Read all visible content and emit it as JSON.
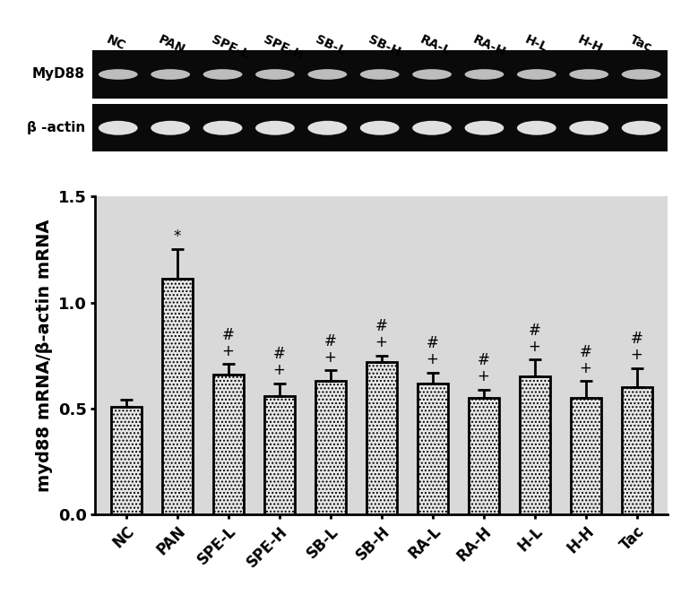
{
  "chart_data": {
    "type": "bar",
    "gel": {
      "lanes": [
        "NC",
        "PAN",
        "SPE-L",
        "SPE-H",
        "SB-L",
        "SB-H",
        "RA-L",
        "RA-H",
        "H-L",
        "H-H",
        "Tac"
      ],
      "rows": [
        "MyD88",
        "β -actin"
      ]
    },
    "y_label": "myd88 mRNA/β-actin mRNA",
    "categories": [
      "NC",
      "PAN",
      "SPE-L",
      "SPE-H",
      "SB-L",
      "SB-H",
      "RA-L",
      "RA-H",
      "H-L",
      "H-H",
      "Tac"
    ],
    "values": [
      0.51,
      1.11,
      0.66,
      0.56,
      0.63,
      0.72,
      0.62,
      0.55,
      0.65,
      0.55,
      0.6
    ],
    "errors": [
      0.03,
      0.14,
      0.05,
      0.06,
      0.05,
      0.03,
      0.05,
      0.04,
      0.08,
      0.08,
      0.09
    ],
    "significance": [
      null,
      [
        "*"
      ],
      [
        "#",
        "+"
      ],
      [
        "#",
        "+"
      ],
      [
        "#",
        "+"
      ],
      [
        "#",
        "+"
      ],
      [
        "#",
        "+"
      ],
      [
        "#",
        "+"
      ],
      [
        "#",
        "+"
      ],
      [
        "#",
        "+"
      ],
      [
        "#",
        "+"
      ]
    ],
    "color": "#e8e8e8",
    "ylim": [
      0,
      1.5
    ],
    "yticks": [
      {
        "value": 0,
        "label": "0.0"
      },
      0.5,
      {
        "value": 1,
        "label": "1.0"
      },
      1.5
    ],
    "grid": false
  }
}
